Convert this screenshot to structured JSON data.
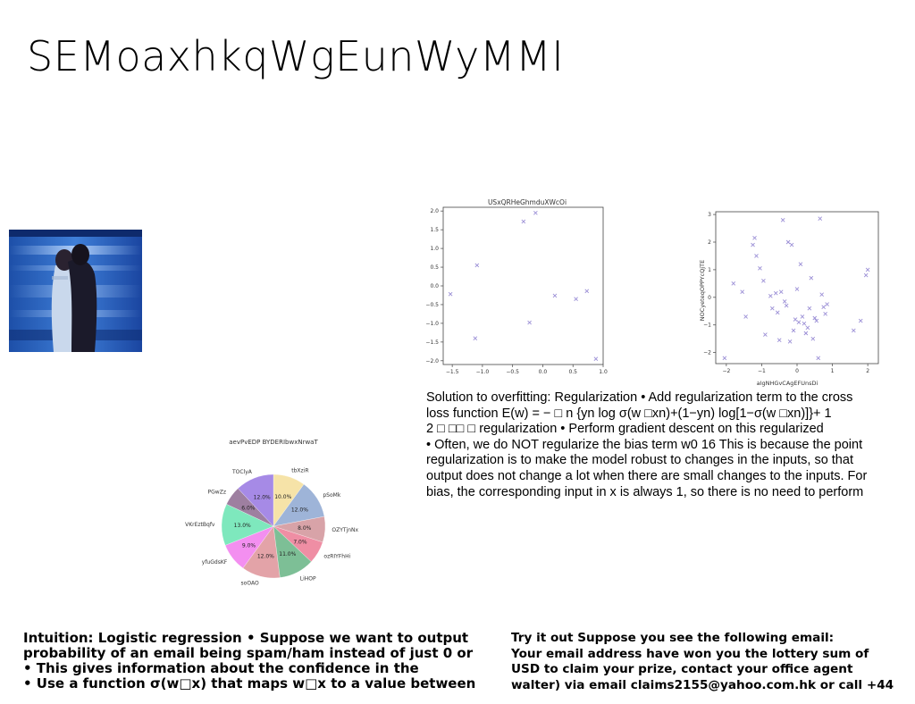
{
  "slide": {
    "title": "SEMoaxhkqWgEunWyMMI"
  },
  "solution_text": "Solution to overfitting: Regularization • Add regularization term to the cross\nloss function E(w) = − □ n {yn log σ(w □xn)+(1−yn) log[1−σ(w □xn)]}+ 1\n2 □ □□ □ regularization • Perform gradient descent on this regularized\n• Often, we do NOT regularize the bias term w0 16 This is because the point\nregularization is to make the model robust to changes in the inputs, so that\noutput does not change a lot when there are small changes to the inputs. For\nbias, the corresponding input in x is always 1, so there is no need to perform",
  "intuition_text": "Intuition: Logistic regression • Suppose we want to output\nprobability of an email being spam/ham instead of just 0 or\n• This gives information about the confidence in the\n• Use a function σ(w□x) that maps w□x to a value between",
  "tryit_text": "Try it out Suppose you see the following email:\nYour email address have won you the lottery sum of\nUSD to claim your prize, contact your office agent\nwalter) via email claims2155@yahoo.com.hk or call +44",
  "chart_data": [
    {
      "type": "scatter",
      "title": "USxQRHeGhmduXWcOi",
      "xlabel": "",
      "ylabel": "",
      "xlim": [
        -1.65,
        1.0
      ],
      "ylim": [
        -2.1,
        2.1
      ],
      "xticks": [
        -1.5,
        -1.0,
        -0.5,
        0.0,
        0.5,
        1.0
      ],
      "xtick_labels": [
        "−1.5",
        "−1.0",
        "−0.5",
        "0.0",
        "0.5",
        "1.0"
      ],
      "yticks": [
        -2.0,
        -1.5,
        -1.0,
        -0.5,
        0.0,
        0.5,
        1.0,
        1.5,
        2.0
      ],
      "ytick_labels": [
        "−2.0",
        "−1.5",
        "−1.0",
        "−0.5",
        "0.0",
        "0.5",
        "1.0",
        "1.5",
        "2.0"
      ],
      "marker": "x",
      "color": "#9b8fd6",
      "grid": false,
      "x": [
        -1.53,
        -1.12,
        -1.09,
        -0.32,
        -0.22,
        -0.12,
        0.2,
        0.55,
        0.73,
        0.88
      ],
      "y": [
        -0.22,
        -1.4,
        0.55,
        1.72,
        -0.98,
        1.95,
        -0.26,
        -0.35,
        -0.14,
        -1.95
      ]
    },
    {
      "type": "scatter",
      "title": "",
      "xlabel": "aIgNHGvCAgEFUnsDi",
      "ylabel": "NOCyeteqOPPYcQjTE",
      "xlim": [
        -2.3,
        2.3
      ],
      "ylim": [
        -2.4,
        3.1
      ],
      "xticks": [
        -2,
        -1,
        0,
        1,
        2
      ],
      "xtick_labels": [
        "−2",
        "−1",
        "0",
        "1",
        "2"
      ],
      "yticks": [
        -2,
        -1,
        0,
        1,
        2,
        3
      ],
      "ytick_labels": [
        "−2",
        "−1",
        "0",
        "1",
        "2",
        "3"
      ],
      "marker": "x",
      "color": "#9b8fd6",
      "grid": false,
      "x": [
        -2.05,
        -1.8,
        -1.55,
        -1.45,
        -1.25,
        -1.2,
        -1.15,
        -1.05,
        -0.95,
        -0.9,
        -0.75,
        -0.7,
        -0.6,
        -0.55,
        -0.5,
        -0.45,
        -0.4,
        -0.35,
        -0.3,
        -0.25,
        -0.2,
        -0.15,
        -0.1,
        -0.05,
        0.0,
        0.05,
        0.1,
        0.15,
        0.2,
        0.25,
        0.3,
        0.35,
        0.4,
        0.45,
        0.5,
        0.55,
        0.6,
        0.65,
        0.7,
        0.75,
        0.8,
        0.85,
        1.6,
        1.8,
        1.95,
        2.0
      ],
      "y": [
        -2.2,
        0.5,
        0.2,
        -0.7,
        1.9,
        2.15,
        1.5,
        1.05,
        0.6,
        -1.35,
        0.05,
        -0.4,
        0.15,
        -0.55,
        -1.55,
        0.2,
        2.8,
        -0.15,
        -0.3,
        2.0,
        -1.6,
        1.9,
        -1.2,
        -0.8,
        0.3,
        -0.9,
        1.2,
        -0.7,
        -0.95,
        -1.3,
        -1.1,
        -0.4,
        0.7,
        -1.5,
        -0.75,
        -0.85,
        -2.2,
        2.85,
        0.1,
        -0.35,
        -0.6,
        -0.25,
        -1.2,
        -0.85,
        0.8,
        1.0
      ],
      "x_note": ""
    },
    {
      "type": "pie",
      "title": "aevPvEDP BYDERIbwxNrwaT",
      "labels": [
        "tbXziR",
        "pSoMk",
        "OZYTjnNx",
        "ozRIYFhHi",
        "LiHOP",
        "soOAO",
        "yfuGdsKF",
        "VKrEztBqfv",
        "PGwZz",
        "TOClyA"
      ],
      "values": [
        10.0,
        12.0,
        8.0,
        7.0,
        11.0,
        12.0,
        9.0,
        13.0,
        6.0,
        12.0
      ],
      "value_labels": [
        "10.0%",
        "12.0%",
        "8.0%",
        "7.0%",
        "11.0%",
        "12.0%",
        "9.0%",
        "13.0%",
        "6.0%",
        "12.0%"
      ],
      "colors": [
        "#f6e3a8",
        "#9eb4d8",
        "#d8a3a8",
        "#ef8ea4",
        "#7dbf96",
        "#e3a3a8",
        "#f38ff0",
        "#7ee8bd",
        "#9e7fa0",
        "#a68ae6"
      ],
      "start_angle_deg": 90,
      "direction": "clockwise"
    }
  ]
}
